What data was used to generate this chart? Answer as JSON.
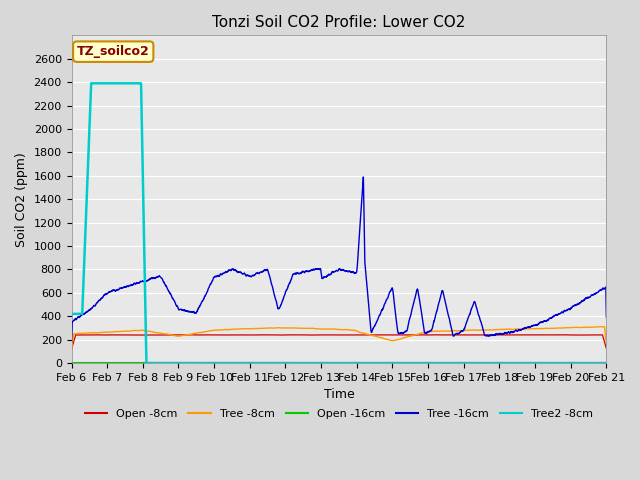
{
  "title": "Tonzi Soil CO2 Profile: Lower CO2",
  "xlabel": "Time",
  "ylabel": "Soil CO2 (ppm)",
  "ylim": [
    0,
    2800
  ],
  "yticks": [
    0,
    200,
    400,
    600,
    800,
    1000,
    1200,
    1400,
    1600,
    1800,
    2000,
    2200,
    2400,
    2600
  ],
  "background_color": "#d8d8d8",
  "plot_bg_color": "#e8e8e8",
  "legend_label_box": "TZ_soilco2",
  "legend_box_color": "#ffffcc",
  "legend_box_edge": "#cc8800",
  "colors": {
    "open_8cm": "#cc0000",
    "tree_8cm": "#ff9900",
    "open_16cm": "#00cc00",
    "tree_16cm": "#0000cc",
    "tree2_8cm": "#00cccc"
  },
  "legend_entries": [
    {
      "label": "Open -8cm",
      "color": "#cc0000"
    },
    {
      "label": "Tree -8cm",
      "color": "#ff9900"
    },
    {
      "label": "Open -16cm",
      "color": "#00cc00"
    },
    {
      "label": "Tree -16cm",
      "color": "#0000cc"
    },
    {
      "label": "Tree2 -8cm",
      "color": "#00cccc"
    }
  ],
  "date_labels": [
    "Feb 6",
    "Feb 7",
    "Feb 8",
    "Feb 9",
    "Feb 10",
    "Feb 11",
    "Feb 12",
    "Feb 13",
    "Feb 14",
    "Feb 15",
    "Feb 16",
    "Feb 17",
    "Feb 18",
    "Feb 19",
    "Feb 20",
    "Feb 21"
  ],
  "title_fontsize": 11,
  "axis_label_fontsize": 9,
  "tick_fontsize": 8
}
